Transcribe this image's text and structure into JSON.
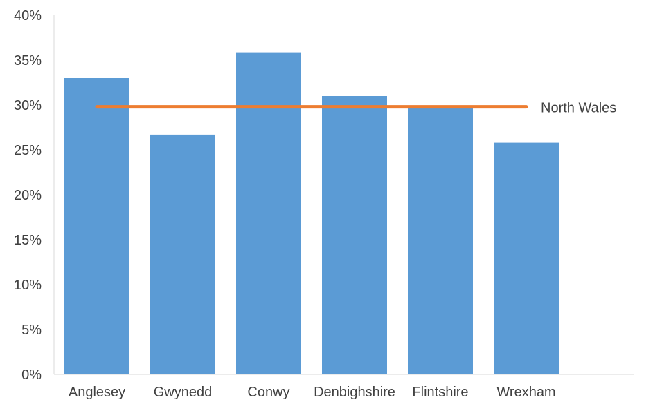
{
  "chart_data": {
    "type": "bar",
    "categories": [
      "Anglesey",
      "Gwynedd",
      "Conwy",
      "Denbighshire",
      "Flintshire",
      "Wrexham"
    ],
    "series": [
      {
        "values": [
          33,
          26.7,
          35.8,
          31,
          29.8,
          25.8
        ],
        "color": "#5b9bd5"
      }
    ],
    "reference_line": {
      "name": "North Wales",
      "value": 29.8,
      "color": "#ed7d31"
    },
    "ylim": [
      0,
      40
    ],
    "yticks": [
      0,
      5,
      10,
      15,
      20,
      25,
      30,
      35,
      40
    ],
    "ytick_labels": [
      "0%",
      "5%",
      "10%",
      "15%",
      "20%",
      "25%",
      "30%",
      "35%",
      "40%"
    ],
    "grid": false,
    "legend": "none",
    "title": "",
    "xlabel": "",
    "ylabel": ""
  }
}
